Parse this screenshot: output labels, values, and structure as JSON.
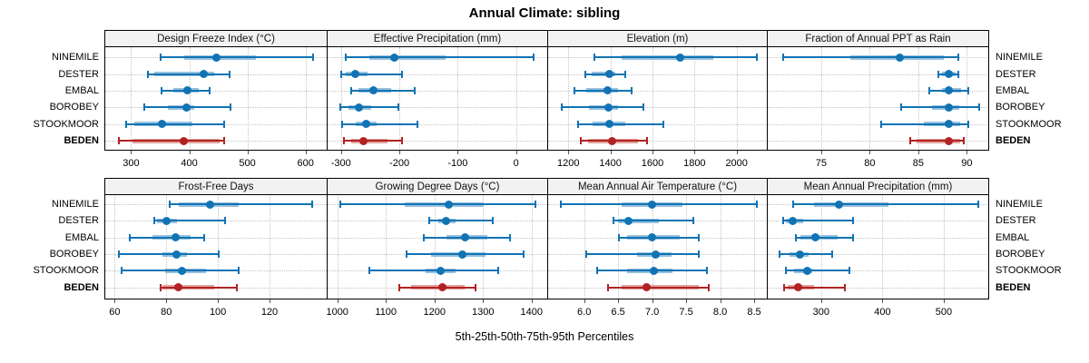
{
  "title": "Annual Climate: sibling",
  "footer_axis_label": "5th-25th-50th-75th-95th Percentiles",
  "stations": [
    "NINEMILE",
    "DESTER",
    "EMBAL",
    "BOROBEY",
    "STOOKMOOR",
    "BEDEN"
  ],
  "highlight_station": "BEDEN",
  "colors": {
    "series_blue": "#1173b4",
    "series_blue_band": "#97c1de",
    "series_red": "#b22222",
    "series_red_band": "#dfa39c",
    "header_bg": "#f2f2f2",
    "panel_border": "#000000",
    "grid_dotted": "#c3c3c3"
  },
  "chart_data": {
    "type": "percentile_dotplot_grid",
    "grid": "2 rows x 4 cols",
    "percentile_levels": [
      5,
      25,
      50,
      75,
      95
    ],
    "legend_note": "thin line = 5th-95th, thick band = 25th-75th, dot = 50th percentile",
    "panels": [
      {
        "title": "Design Freeze Index (°C)",
        "xlim": [
          254,
          638
        ],
        "ticks": [
          300,
          400,
          500,
          600
        ],
        "tick_labels": [
          "300",
          "400",
          "500",
          "600"
        ],
        "series": [
          {
            "name": "NINEMILE",
            "values": [
              350,
              392,
              446,
              515,
              613
            ]
          },
          {
            "name": "DESTER",
            "values": [
              328,
              340,
              425,
              443,
              468
            ]
          },
          {
            "name": "EMBAL",
            "values": [
              352,
              372,
              397,
              417,
              434
            ]
          },
          {
            "name": "BOROBEY",
            "values": [
              322,
              364,
              396,
              408,
              470
            ]
          },
          {
            "name": "STOOKMOOR",
            "values": [
              291,
              306,
              353,
              405,
              460
            ]
          },
          {
            "name": "BEDEN",
            "values": [
              278,
              302,
              390,
              452,
              460
            ]
          }
        ]
      },
      {
        "title": "Effective Precipitation (mm)",
        "xlim": [
          -323,
          55
        ],
        "ticks": [
          -300,
          -200,
          -100,
          0
        ],
        "tick_labels": [
          "-300",
          "-200",
          "-100",
          "0"
        ],
        "series": [
          {
            "name": "NINEMILE",
            "values": [
              -292,
              -252,
              -209,
              -120,
              30
            ]
          },
          {
            "name": "DESTER",
            "values": [
              -300,
              -292,
              -275,
              -254,
              -197
            ]
          },
          {
            "name": "EMBAL",
            "values": [
              -283,
              -270,
              -244,
              -214,
              -174
            ]
          },
          {
            "name": "BOROBEY",
            "values": [
              -302,
              -287,
              -270,
              -248,
              -203
            ]
          },
          {
            "name": "STOOKMOOR",
            "values": [
              -299,
              -275,
              -257,
              -239,
              -170
            ]
          },
          {
            "name": "BEDEN",
            "values": [
              -296,
              -283,
              -262,
              -220,
              -197
            ]
          }
        ]
      },
      {
        "title": "Elevation (m)",
        "xlim": [
          1104,
          2148
        ],
        "ticks": [
          1200,
          1400,
          1600,
          1800,
          2000
        ],
        "tick_labels": [
          "1200",
          "1400",
          "1600",
          "1800",
          "2000"
        ],
        "series": [
          {
            "name": "NINEMILE",
            "values": [
              1320,
              1455,
              1730,
              1890,
              2095
            ]
          },
          {
            "name": "DESTER",
            "values": [
              1280,
              1312,
              1395,
              1424,
              1470
            ]
          },
          {
            "name": "EMBAL",
            "values": [
              1225,
              1285,
              1388,
              1438,
              1500
            ]
          },
          {
            "name": "BOROBEY",
            "values": [
              1165,
              1300,
              1390,
              1438,
              1553
            ]
          },
          {
            "name": "STOOKMOOR",
            "values": [
              1243,
              1315,
              1395,
              1470,
              1650
            ]
          },
          {
            "name": "BEDEN",
            "values": [
              1255,
              1295,
              1410,
              1530,
              1570
            ]
          }
        ]
      },
      {
        "title": "Fraction of Annual PPT as Rain",
        "xlim": [
          69.5,
          92.3
        ],
        "ticks": [
          75,
          80,
          85,
          90
        ],
        "tick_labels": [
          "75",
          "80",
          "85",
          "90"
        ],
        "series": [
          {
            "name": "NINEMILE",
            "values": [
              71.0,
              78.0,
              83.1,
              87.6,
              89.1
            ]
          },
          {
            "name": "DESTER",
            "values": [
              87.0,
              87.4,
              88.1,
              88.8,
              89.1
            ]
          },
          {
            "name": "EMBAL",
            "values": [
              86.1,
              87.4,
              88.1,
              89.4,
              90.1
            ]
          },
          {
            "name": "BOROBEY",
            "values": [
              83.2,
              86.4,
              88.1,
              89.2,
              91.2
            ]
          },
          {
            "name": "STOOKMOOR",
            "values": [
              81.1,
              85.6,
              88.1,
              89.3,
              90.1
            ]
          },
          {
            "name": "BEDEN",
            "values": [
              84.1,
              84.8,
              88.1,
              89.3,
              89.6
            ]
          }
        ]
      },
      {
        "title": "Frost-Free Days",
        "xlim": [
          56,
          142.5
        ],
        "ticks": [
          60,
          80,
          100,
          120
        ],
        "tick_labels": [
          "60",
          "80",
          "100",
          "120"
        ],
        "series": [
          {
            "name": "NINEMILE",
            "values": [
              81,
              85,
              97,
              108,
              136.5
            ]
          },
          {
            "name": "DESTER",
            "values": [
              75,
              76.5,
              80,
              84,
              102.5
            ]
          },
          {
            "name": "EMBAL",
            "values": [
              65.5,
              74.5,
              83.5,
              89.5,
              94.5
            ]
          },
          {
            "name": "BOROBEY",
            "values": [
              61.5,
              78.5,
              84,
              88,
              100
            ]
          },
          {
            "name": "STOOKMOOR",
            "values": [
              62.5,
              79.5,
              86,
              95.5,
              108
            ]
          },
          {
            "name": "BEDEN",
            "values": [
              77.5,
              78.5,
              84.5,
              98.5,
              107
            ]
          }
        ]
      },
      {
        "title": "Growing Degree Days (°C)",
        "xlim": [
          980,
          1434
        ],
        "ticks": [
          1000,
          1100,
          1200,
          1300,
          1400
        ],
        "tick_labels": [
          "1000",
          "1100",
          "1200",
          "1300",
          "1400"
        ],
        "series": [
          {
            "name": "NINEMILE",
            "values": [
              1006,
              1139,
              1230,
              1302,
              1406
            ]
          },
          {
            "name": "DESTER",
            "values": [
              1188,
              1207,
              1224,
              1244,
              1320
            ]
          },
          {
            "name": "EMBAL",
            "values": [
              1178,
              1224,
              1263,
              1308,
              1355
            ]
          },
          {
            "name": "BOROBEY",
            "values": [
              1141,
              1193,
              1258,
              1305,
              1383
            ]
          },
          {
            "name": "STOOKMOOR",
            "values": [
              1065,
              1182,
              1213,
              1244,
              1331
            ]
          },
          {
            "name": "BEDEN",
            "values": [
              1127,
              1152,
              1216,
              1263,
              1284
            ]
          }
        ]
      },
      {
        "title": "Mean Annual Air Temperature (°C)",
        "xlim": [
          5.47,
          8.7
        ],
        "ticks": [
          6.0,
          6.5,
          7.0,
          7.5,
          8.0,
          8.5
        ],
        "tick_labels": [
          "6.0",
          "6.5",
          "7.0",
          "7.5",
          "8.0",
          "8.5"
        ],
        "series": [
          {
            "name": "NINEMILE",
            "values": [
              5.65,
              6.55,
              7.0,
              7.45,
              8.53
            ]
          },
          {
            "name": "DESTER",
            "values": [
              6.43,
              6.5,
              6.65,
              7.1,
              7.6
            ]
          },
          {
            "name": "EMBAL",
            "values": [
              6.5,
              6.63,
              7.0,
              7.4,
              7.68
            ]
          },
          {
            "name": "BOROBEY",
            "values": [
              6.03,
              6.78,
              7.05,
              7.28,
              7.68
            ]
          },
          {
            "name": "STOOKMOOR",
            "values": [
              6.18,
              6.63,
              7.03,
              7.3,
              7.8
            ]
          },
          {
            "name": "BEDEN",
            "values": [
              6.35,
              6.55,
              6.92,
              7.68,
              7.83
            ]
          }
        ]
      },
      {
        "title": "Mean Annual Precipitation (mm)",
        "xlim": [
          213,
          574
        ],
        "ticks": [
          300,
          400,
          500
        ],
        "tick_labels": [
          "300",
          "400",
          "500"
        ],
        "series": [
          {
            "name": "NINEMILE",
            "values": [
              254,
              288,
              329,
              410,
              556
            ]
          },
          {
            "name": "DESTER",
            "values": [
              238,
              242,
              254,
              271,
              352
            ]
          },
          {
            "name": "EMBAL",
            "values": [
              258,
              266,
              291,
              327,
              352
            ]
          },
          {
            "name": "BOROBEY",
            "values": [
              232,
              248,
              265,
              279,
              317
            ]
          },
          {
            "name": "STOOKMOOR",
            "values": [
              242,
              256,
              278,
              285,
              345
            ]
          },
          {
            "name": "BEDEN",
            "values": [
              239,
              246,
              262,
              288,
              338
            ]
          }
        ]
      }
    ]
  }
}
